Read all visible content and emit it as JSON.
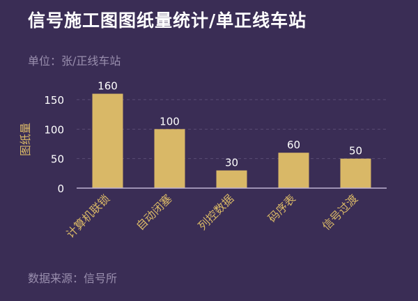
{
  "title": "信号施工图图纸量统计/单正线车站",
  "unit_label": "单位：张/正线车站",
  "source_label": "数据来源：信号所",
  "colors": {
    "background": "#3a2d55",
    "bar": "#d9b867",
    "axis_text": "#d9b867",
    "tick_text": "#ffffff",
    "grid": "#5a4d75"
  },
  "chart_data": {
    "type": "bar",
    "title": "信号施工图图纸量统计/单正线车站",
    "ylabel": "图纸量",
    "xlabel": "",
    "categories": [
      "计算机联锁",
      "自动闭塞",
      "列控数据",
      "码序表",
      "信号过渡"
    ],
    "values": [
      160,
      100,
      30,
      60,
      50
    ],
    "data_labels": [
      "160",
      "100",
      "30",
      "60",
      "50"
    ],
    "y_ticks": [
      "0",
      "50",
      "100",
      "150"
    ],
    "ylim": [
      0,
      170
    ],
    "grid": true
  }
}
